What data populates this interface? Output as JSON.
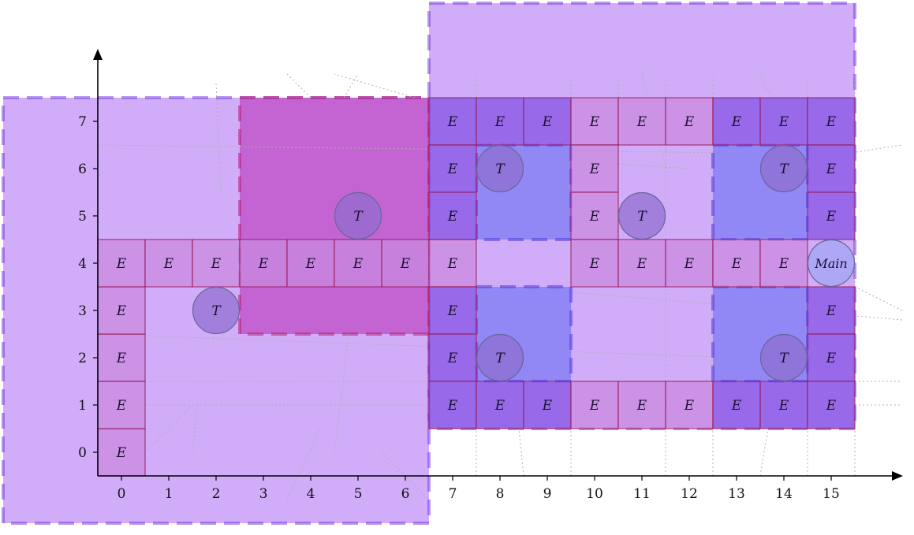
{
  "axes": {
    "x_ticks": [
      0,
      1,
      2,
      3,
      4,
      5,
      6,
      7,
      8,
      9,
      10,
      11,
      12,
      13,
      14,
      15
    ],
    "y_ticks": [
      0,
      1,
      2,
      3,
      4,
      5,
      6,
      7
    ],
    "x_range": [
      -0.5,
      16.5
    ],
    "y_range": [
      -0.5,
      8.0
    ]
  },
  "colors": {
    "zone_fill": "#b97ff5",
    "zone_stroke": "#7a3fe0",
    "dark_zone_fill": "#c052c8",
    "dark_zone_stroke": "#b02078",
    "room_fill": "#7b7cf5",
    "room_stroke": "#5a3fe0",
    "edge_fill": "#c98ae0",
    "edge_fill_dark": "#8a5ae6",
    "edge_stroke": "#9a1a5a",
    "tower_fill": "#8e6ccf",
    "tower_stroke": "#666699",
    "main_fill": "#a8a6f5",
    "trace_stroke": "#b0b0b0"
  },
  "zones": [
    {
      "x0": -2.5,
      "x1": 6.5,
      "y0": -1.5,
      "y1": 7.5,
      "style": "light"
    },
    {
      "x0": 6.5,
      "x1": 15.5,
      "y0": 0.5,
      "y1": 9.5,
      "style": "light"
    },
    {
      "x0": 2.5,
      "x1": 6.5,
      "y0": 2.5,
      "y1": 7.5,
      "style": "dark"
    }
  ],
  "rooms": [
    {
      "x0": 7.5,
      "x1": 9.5,
      "y0": 4.5,
      "y1": 6.5
    },
    {
      "x0": 12.5,
      "x1": 14.5,
      "y0": 4.5,
      "y1": 6.5
    },
    {
      "x0": 7.5,
      "x1": 9.5,
      "y0": 1.5,
      "y1": 3.5
    },
    {
      "x0": 12.5,
      "x1": 14.5,
      "y0": 1.5,
      "y1": 3.5
    }
  ],
  "edge_cells": [
    {
      "x": 0,
      "y": 0
    },
    {
      "x": 0,
      "y": 1
    },
    {
      "x": 0,
      "y": 2
    },
    {
      "x": 0,
      "y": 3
    },
    {
      "x": 0,
      "y": 4
    },
    {
      "x": 1,
      "y": 4
    },
    {
      "x": 2,
      "y": 4
    },
    {
      "x": 3,
      "y": 4
    },
    {
      "x": 4,
      "y": 4
    },
    {
      "x": 5,
      "y": 4
    },
    {
      "x": 6,
      "y": 4
    },
    {
      "x": 7,
      "y": 4
    },
    {
      "x": 7,
      "y": 7
    },
    {
      "x": 8,
      "y": 7
    },
    {
      "x": 9,
      "y": 7
    },
    {
      "x": 10,
      "y": 7
    },
    {
      "x": 11,
      "y": 7
    },
    {
      "x": 12,
      "y": 7
    },
    {
      "x": 13,
      "y": 7
    },
    {
      "x": 14,
      "y": 7
    },
    {
      "x": 15,
      "y": 7
    },
    {
      "x": 7,
      "y": 6
    },
    {
      "x": 7,
      "y": 5
    },
    {
      "x": 10,
      "y": 6
    },
    {
      "x": 10,
      "y": 5
    },
    {
      "x": 15,
      "y": 6
    },
    {
      "x": 15,
      "y": 5
    },
    {
      "x": 10,
      "y": 4
    },
    {
      "x": 11,
      "y": 4
    },
    {
      "x": 12,
      "y": 4
    },
    {
      "x": 13,
      "y": 4
    },
    {
      "x": 14,
      "y": 4
    },
    {
      "x": 7,
      "y": 3
    },
    {
      "x": 7,
      "y": 2
    },
    {
      "x": 15,
      "y": 3
    },
    {
      "x": 15,
      "y": 2
    },
    {
      "x": 7,
      "y": 1
    },
    {
      "x": 8,
      "y": 1
    },
    {
      "x": 9,
      "y": 1
    },
    {
      "x": 10,
      "y": 1
    },
    {
      "x": 11,
      "y": 1
    },
    {
      "x": 12,
      "y": 1
    },
    {
      "x": 13,
      "y": 1
    },
    {
      "x": 14,
      "y": 1
    },
    {
      "x": 15,
      "y": 1
    }
  ],
  "edge_label": "E",
  "towers": [
    {
      "x": 5,
      "y": 5
    },
    {
      "x": 2,
      "y": 3
    },
    {
      "x": 8,
      "y": 6
    },
    {
      "x": 11,
      "y": 5
    },
    {
      "x": 14,
      "y": 6
    },
    {
      "x": 8,
      "y": 2
    },
    {
      "x": 14,
      "y": 2
    }
  ],
  "tower_label": "T",
  "main": {
    "x": 15,
    "y": 4,
    "label": "Main"
  },
  "traces": [
    [
      [
        -0.5,
        6.5
      ],
      [
        15.5,
        6.3
      ]
    ],
    [
      [
        -0.5,
        2.5
      ],
      [
        13,
        2.0
      ]
    ],
    [
      [
        0,
        1.5
      ],
      [
        16.5,
        1.5
      ]
    ],
    [
      [
        0,
        1.0
      ],
      [
        16.5,
        1.0
      ]
    ],
    [
      [
        7,
        3.6
      ],
      [
        16.5,
        2.8
      ]
    ],
    [
      [
        9,
        6.2
      ],
      [
        12,
        6.0
      ]
    ],
    [
      [
        15.2,
        6.3
      ],
      [
        16.5,
        6.5
      ]
    ],
    [
      [
        2,
        7.8
      ],
      [
        2.1,
        5.5
      ]
    ],
    [
      [
        6.2,
        7.5
      ],
      [
        4.5,
        8.0
      ]
    ],
    [
      [
        4.7,
        7.5
      ],
      [
        5.0,
        8.0
      ]
    ],
    [
      [
        3.5,
        8.0
      ],
      [
        4.0,
        7.5
      ]
    ],
    [
      [
        0.5,
        0.0
      ],
      [
        1.5,
        1.0
      ]
    ],
    [
      [
        1.5,
        0.0
      ],
      [
        1.6,
        1.0
      ]
    ],
    [
      [
        3.5,
        -1.0
      ],
      [
        4.2,
        0.5
      ]
    ],
    [
      [
        4.5,
        0.0
      ],
      [
        4.8,
        2.5
      ]
    ],
    [
      [
        5.5,
        0.0
      ],
      [
        6.5,
        -1.0
      ]
    ],
    [
      [
        7.5,
        -0.5
      ],
      [
        7.5,
        8.0
      ]
    ],
    [
      [
        8.5,
        -0.5
      ],
      [
        8.3,
        1.5
      ]
    ],
    [
      [
        8.0,
        4.5
      ],
      [
        8.3,
        6.5
      ]
    ],
    [
      [
        9.5,
        -0.5
      ],
      [
        9.5,
        8.0
      ]
    ],
    [
      [
        10.5,
        4.5
      ],
      [
        10.5,
        8.0
      ]
    ],
    [
      [
        11.5,
        -0.5
      ],
      [
        11.5,
        8.0
      ]
    ],
    [
      [
        12.5,
        -0.5
      ],
      [
        12.5,
        8.0
      ]
    ],
    [
      [
        13.5,
        -0.5
      ],
      [
        14.0,
        2.5
      ]
    ],
    [
      [
        13.5,
        8.0
      ],
      [
        14.2,
        6.5
      ]
    ],
    [
      [
        14.5,
        -0.5
      ],
      [
        14.5,
        8.0
      ]
    ],
    [
      [
        15.5,
        -0.5
      ],
      [
        15.5,
        8.0
      ]
    ],
    [
      [
        11.0,
        8.0
      ],
      [
        11.5,
        6.0
      ]
    ],
    [
      [
        15.5,
        3.5
      ],
      [
        16.5,
        3.0
      ]
    ]
  ]
}
